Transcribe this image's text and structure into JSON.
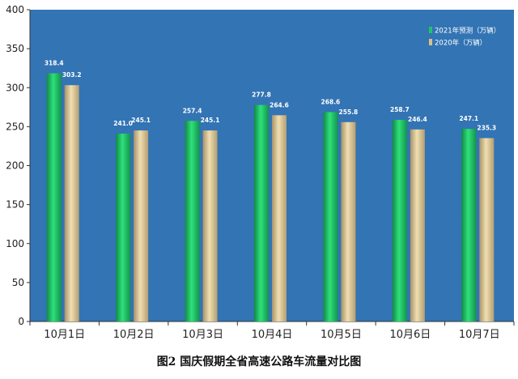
{
  "caption": "图2   国庆假期全省高速公路车流量对比图",
  "chart_data": {
    "type": "bar",
    "title": "",
    "xlabel": "",
    "ylabel": "",
    "ylim": [
      0,
      400
    ],
    "yticks": [
      0,
      50,
      100,
      150,
      200,
      250,
      300,
      350,
      400
    ],
    "categories": [
      "10月1日",
      "10月2日",
      "10月3日",
      "10月4日",
      "10月5日",
      "10月6日",
      "10月7日"
    ],
    "series": [
      {
        "name": "2021年预测（万辆）",
        "values": [
          318.4,
          241.0,
          257.4,
          277.8,
          268.6,
          258.7,
          247.1
        ],
        "color": "#22c465"
      },
      {
        "name": "2020年（万辆）",
        "values": [
          303.2,
          245.1,
          245.1,
          264.6,
          255.8,
          246.4,
          235.3
        ],
        "color": "#d9c28a"
      }
    ],
    "grid": false,
    "legend_position": "top-right",
    "plot_background": "#3374b4"
  }
}
